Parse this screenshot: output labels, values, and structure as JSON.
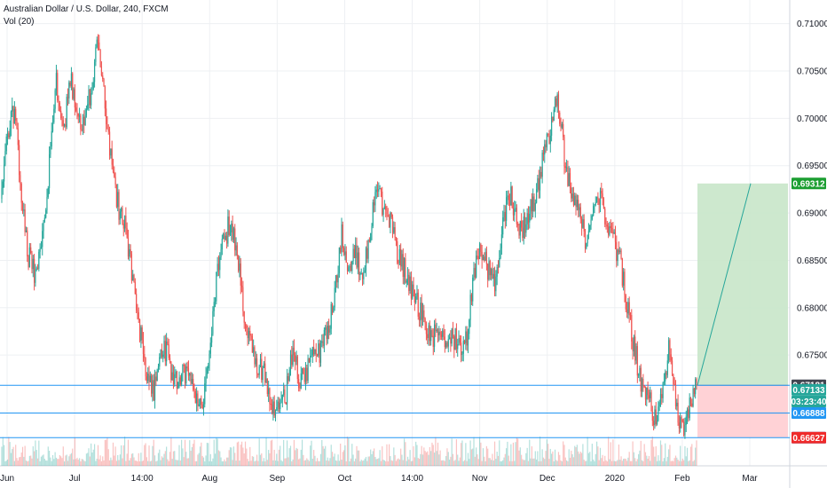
{
  "chart_data": {
    "type": "candlestick",
    "title": "Australian Dollar / U.S. Dollar, 240, FXCM",
    "subtitle": "Vol (20)",
    "x_tick_labels": [
      "Jun",
      "Jul",
      "14:00",
      "Aug",
      "Sep",
      "Oct",
      "14:00",
      "Nov",
      "Dec",
      "2020",
      "Feb",
      "Mar"
    ],
    "y_tick_labels": [
      "0.71000",
      "0.70500",
      "0.70000",
      "0.69500",
      "0.69000",
      "0.68500",
      "0.68000",
      "0.67500"
    ],
    "ylim": [
      0.6633,
      0.7125
    ],
    "grid": true,
    "colors": {
      "up": "#26a69a",
      "down": "#ef5350",
      "target_zone": "#c8e6c9",
      "stop_zone": "#ffcdd2",
      "line": "#2196f3"
    },
    "price_path": [
      [
        0.6915,
        0.6985,
        0.7008,
        0.692,
        0.6855,
        0.6835,
        0.688,
        0.695,
        0.704,
        0.698
      ],
      [
        0.7045,
        0.701,
        0.6985,
        0.7035,
        0.7082,
        0.701,
        0.6945,
        0.6905,
        0.688,
        0.683
      ],
      [
        0.6778,
        0.673,
        0.6715,
        0.676,
        0.675,
        0.672,
        0.6725,
        0.674,
        0.67,
        0.6698
      ],
      [
        0.674,
        0.683,
        0.687,
        0.689,
        0.686,
        0.679,
        0.676,
        0.674,
        0.673,
        0.669
      ],
      [
        0.6692,
        0.671,
        0.676,
        0.672,
        0.6735,
        0.676,
        0.675,
        0.678,
        0.681,
        0.688
      ],
      [
        0.684,
        0.686,
        0.682,
        0.688,
        0.6925,
        0.6905,
        0.689,
        0.686,
        0.684,
        0.682
      ],
      [
        0.68,
        0.678,
        0.677,
        0.678,
        0.676,
        0.677,
        0.676,
        0.677,
        0.684,
        0.686
      ],
      [
        0.684,
        0.682,
        0.688,
        0.6925,
        0.6895,
        0.688,
        0.69,
        0.692,
        0.696,
        0.699
      ],
      [
        0.7025,
        0.696,
        0.692,
        0.6905,
        0.687,
        0.69,
        0.692,
        0.6895,
        0.687,
        0.685
      ],
      [
        0.68,
        0.676,
        0.672,
        0.6708,
        0.668,
        0.67,
        0.676,
        0.67,
        0.667,
        0.67,
        0.6714
      ]
    ],
    "horizontal_lines": [
      0.67181,
      0.66888,
      0.66628
    ],
    "position": {
      "entry": 0.67181,
      "target": 0.69312,
      "stop": 0.66627
    },
    "price_badges": [
      {
        "label": "0.69312",
        "value": 0.69312,
        "color": "#1b9e31"
      },
      {
        "label": "0.67181",
        "value": 0.67181,
        "color": "#434651"
      },
      {
        "label": "0.67133",
        "value": 0.67133,
        "color": "#26a69a"
      },
      {
        "label": "03:23:40",
        "value": 0.6701,
        "color": "#26a69a"
      },
      {
        "label": "0.66888",
        "value": 0.66888,
        "color": "#2196f3"
      },
      {
        "label": "0.66628",
        "value": 0.66628,
        "color": "#2196f3"
      },
      {
        "label": "0.66627",
        "value": 0.66627,
        "color": "#ef2a2a"
      }
    ]
  }
}
